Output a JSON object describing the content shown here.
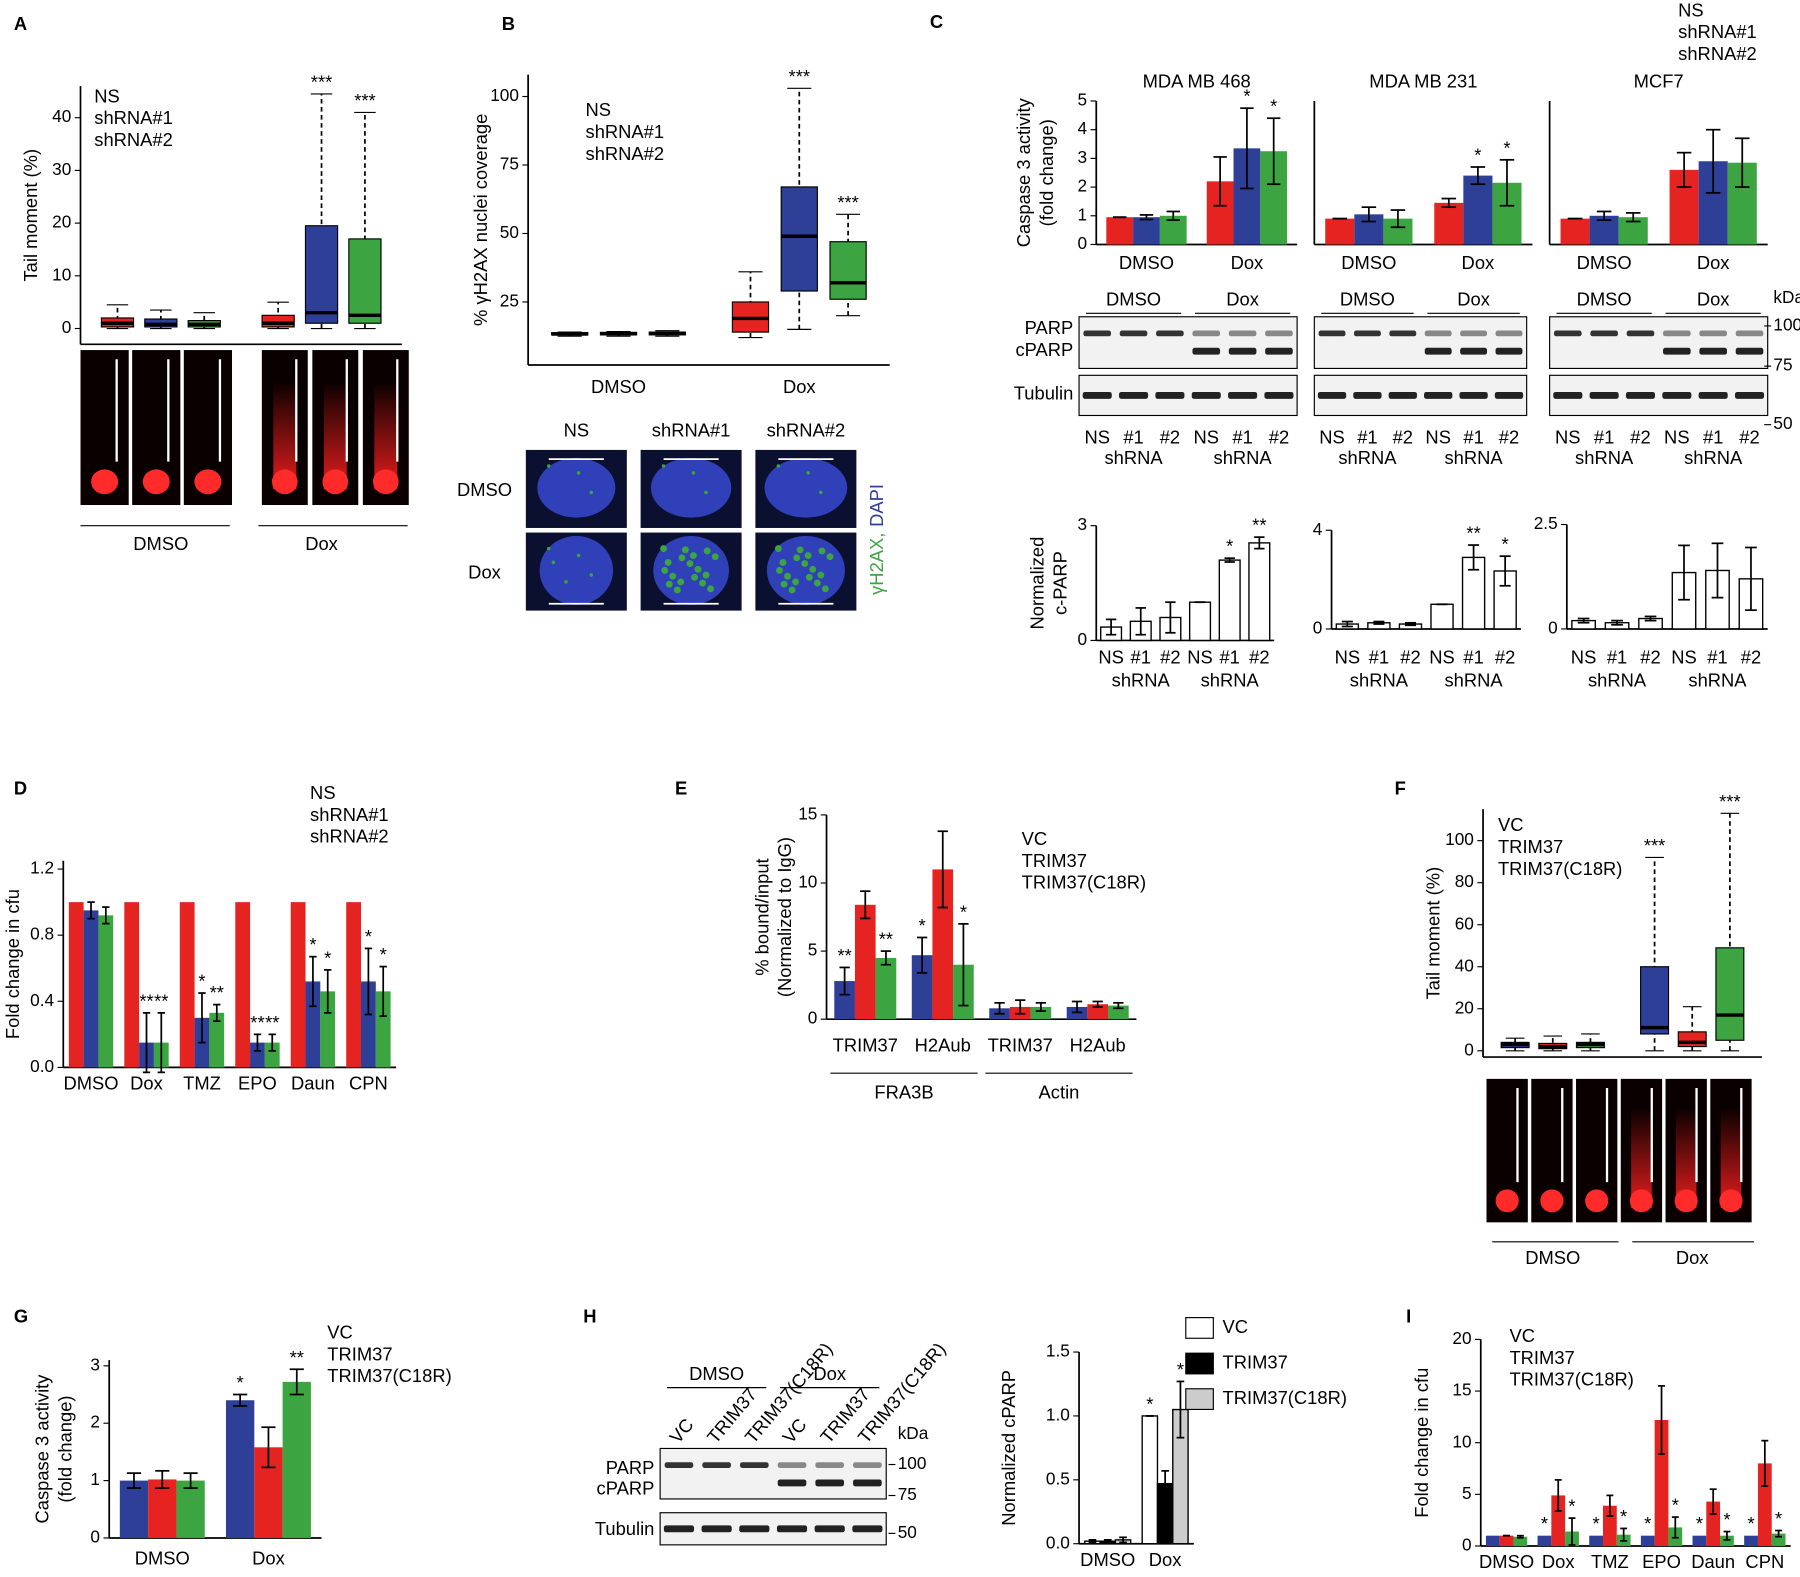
{
  "chart_data": [
    {
      "type": "box",
      "panel": "A",
      "ylabel": [
        "Tail moment (%)"
      ],
      "ylim": [
        -3,
        46
      ],
      "yticks": [
        0,
        10,
        20,
        30,
        40
      ],
      "categories": [
        "DMSO",
        "Dox"
      ],
      "series": [
        {
          "name": "NS",
          "color": "#e52421",
          "values": [
            {
              "min": 0,
              "q1": 0.3,
              "median": 1,
              "q3": 2,
              "max": 4.5
            },
            {
              "min": 0,
              "q1": 0.3,
              "median": 1,
              "q3": 2.5,
              "max": 5
            }
          ]
        },
        {
          "name": "shRNA#1",
          "color": "#2e3f98",
          "values": [
            {
              "min": 0,
              "q1": 0.3,
              "median": 0.8,
              "q3": 1.8,
              "max": 3.5
            },
            {
              "min": 0,
              "q1": 1,
              "median": 3,
              "q3": 19.5,
              "max": 44.5
            }
          ],
          "significance": [
            null,
            "***"
          ]
        },
        {
          "name": "shRNA#2",
          "color": "#3ca541",
          "values": [
            {
              "min": 0,
              "q1": 0.3,
              "median": 0.8,
              "q3": 1.5,
              "max": 3
            },
            {
              "min": 0,
              "q1": 1,
              "median": 2.5,
              "q3": 17,
              "max": 41
            }
          ],
          "significance": [
            null,
            "***"
          ]
        }
      ]
    },
    {
      "type": "box",
      "panel": "B",
      "ylabel": [
        "% γH2AX nuclei coverage"
      ],
      "ylim": [
        2,
        108
      ],
      "yticks": [
        25,
        50,
        75,
        100
      ],
      "categories": [
        "DMSO",
        "Dox"
      ],
      "series": [
        {
          "name": "NS",
          "color": "#e52421",
          "values": [
            {
              "min": 12.5,
              "q1": 13,
              "median": 13.3,
              "q3": 13.8,
              "max": 14
            },
            {
              "min": 12,
              "q1": 14,
              "median": 19,
              "q3": 25,
              "max": 36
            }
          ]
        },
        {
          "name": "shRNA#1",
          "color": "#2e3f98",
          "values": [
            {
              "min": 12.5,
              "q1": 13,
              "median": 13.4,
              "q3": 13.9,
              "max": 14.2
            },
            {
              "min": 15,
              "q1": 29,
              "median": 49,
              "q3": 67,
              "max": 103
            }
          ],
          "significance": [
            null,
            "***"
          ]
        },
        {
          "name": "shRNA#2",
          "color": "#3ca541",
          "values": [
            {
              "min": 12.5,
              "q1": 13,
              "median": 13.5,
              "q3": 14,
              "max": 14.5
            },
            {
              "min": 20,
              "q1": 26,
              "median": 32,
              "q3": 47,
              "max": 57
            }
          ],
          "significance": [
            null,
            "***"
          ]
        }
      ]
    },
    {
      "type": "bar",
      "panel": "C",
      "title": "MDA MB 468",
      "ylabel": [
        "Caspase 3 activity",
        "(fold change)"
      ],
      "ylim": [
        0,
        5
      ],
      "yticks": [
        0,
        1,
        2,
        3,
        4,
        5
      ],
      "categories": [
        "DMSO",
        "Dox"
      ],
      "series": [
        {
          "name": "NS",
          "color": "#e52421",
          "values": [
            0.95,
            2.2
          ],
          "errors": [
            0,
            0.85
          ]
        },
        {
          "name": "shRNA#1",
          "color": "#2e3f98",
          "values": [
            0.95,
            3.35
          ],
          "errors": [
            0.08,
            1.4
          ],
          "significance": [
            null,
            "*"
          ]
        },
        {
          "name": "shRNA#2",
          "color": "#3ca541",
          "values": [
            1.0,
            3.25
          ],
          "errors": [
            0.15,
            1.15
          ],
          "significance": [
            null,
            "*"
          ]
        }
      ]
    },
    {
      "type": "bar",
      "title": "MDA MB 231",
      "ylim": [
        0,
        5
      ],
      "categories": [
        "DMSO",
        "Dox"
      ],
      "series": [
        {
          "color": "#e52421",
          "values": [
            0.9,
            1.45
          ],
          "errors": [
            0,
            0.15
          ]
        },
        {
          "color": "#2e3f98",
          "values": [
            1.05,
            2.4
          ],
          "errors": [
            0.25,
            0.3
          ],
          "significance": [
            null,
            "*"
          ]
        },
        {
          "color": "#3ca541",
          "values": [
            0.9,
            2.15
          ],
          "errors": [
            0.3,
            0.8
          ],
          "significance": [
            null,
            "*"
          ]
        }
      ]
    },
    {
      "type": "bar",
      "title": "MCF7",
      "ylim": [
        0,
        5
      ],
      "categories": [
        "DMSO",
        "Dox"
      ],
      "series": [
        {
          "color": "#e52421",
          "values": [
            0.9,
            2.6
          ],
          "errors": [
            0,
            0.6
          ]
        },
        {
          "color": "#2e3f98",
          "values": [
            1.0,
            2.9
          ],
          "errors": [
            0.15,
            1.1
          ]
        },
        {
          "color": "#3ca541",
          "values": [
            0.95,
            2.85
          ],
          "errors": [
            0.15,
            0.85
          ]
        }
      ]
    },
    {
      "type": "bar",
      "ylabel": [
        "Normalized",
        "c-PARP"
      ],
      "ylim": [
        0,
        3
      ],
      "yticks": [
        0,
        3
      ],
      "categories": [
        "NS",
        "#1",
        "#2",
        "NS",
        "#1",
        "#2"
      ],
      "group_labels": [
        "shRNA",
        "shRNA"
      ],
      "color": "#ffffff",
      "outline": "#000000",
      "values": [
        0.35,
        0.5,
        0.6,
        1.0,
        2.1,
        2.55
      ],
      "errors": [
        0.2,
        0.35,
        0.4,
        0,
        0.05,
        0.15
      ],
      "significance": [
        null,
        null,
        null,
        null,
        "*",
        "**"
      ]
    },
    {
      "type": "bar",
      "ylim": [
        0,
        4
      ],
      "yticks": [
        0,
        4
      ],
      "categories": [
        "NS",
        "#1",
        "#2",
        "NS",
        "#1",
        "#2"
      ],
      "group_labels": [
        "shRNA",
        "shRNA"
      ],
      "color": "#ffffff",
      "outline": "#000000",
      "values": [
        0.2,
        0.25,
        0.2,
        1.0,
        2.9,
        2.35
      ],
      "errors": [
        0.1,
        0.05,
        0.05,
        0,
        0.5,
        0.6
      ],
      "significance": [
        null,
        null,
        null,
        null,
        "**",
        "*"
      ]
    },
    {
      "type": "bar",
      "ylim": [
        0,
        2.5
      ],
      "yticks": [
        0,
        2.5
      ],
      "categories": [
        "NS",
        "#1",
        "#2",
        "NS",
        "#1",
        "#2"
      ],
      "group_labels": [
        "shRNA",
        "shRNA"
      ],
      "color": "#ffffff",
      "outline": "#000000",
      "values": [
        0.2,
        0.15,
        0.25,
        1.35,
        1.4,
        1.2
      ],
      "errors": [
        0.05,
        0.05,
        0.05,
        0.65,
        0.65,
        0.75
      ]
    },
    {
      "type": "bar",
      "panel": "D",
      "ylabel": [
        "Fold change in cfu"
      ],
      "ylim": [
        0,
        1.25
      ],
      "yticks": [
        {
          "value": 0,
          "label": "0.0"
        },
        0.4,
        0.8,
        1.2
      ],
      "categories": [
        "DMSO",
        "Dox",
        "TMZ",
        "EPO",
        "Daun",
        "CPN"
      ],
      "series": [
        {
          "name": "NS",
          "color": "#e52421",
          "values": [
            1,
            1,
            1,
            1,
            1,
            1
          ]
        },
        {
          "name": "shRNA#1",
          "color": "#2e3f98",
          "values": [
            0.95,
            0.15,
            0.3,
            0.15,
            0.52,
            0.52
          ],
          "errors": [
            0.05,
            0.18,
            0.15,
            0.05,
            0.15,
            0.2
          ],
          "significance": [
            null,
            "**",
            "*",
            "**",
            "*",
            "*"
          ]
        },
        {
          "name": "shRNA#2",
          "color": "#3ca541",
          "values": [
            0.92,
            0.15,
            0.33,
            0.15,
            0.46,
            0.46
          ],
          "errors": [
            0.05,
            0.18,
            0.05,
            0.05,
            0.13,
            0.15
          ],
          "significance": [
            null,
            "**",
            "**",
            "**",
            "*",
            "*"
          ]
        }
      ]
    },
    {
      "type": "bar",
      "panel": "E",
      "ylabel": [
        "% bound/input",
        "(Normalized to IgG)"
      ],
      "ylim": [
        0,
        15
      ],
      "yticks": [
        0,
        5,
        10,
        15
      ],
      "categories": [
        "TRIM37",
        "H2Aub",
        "TRIM37",
        "H2Aub"
      ],
      "group_labels": [
        "FRA3B",
        "Actin"
      ],
      "series": [
        {
          "name": "VC",
          "color": "#2e3f98",
          "values": [
            2.8,
            4.7,
            0.8,
            0.9
          ],
          "errors": [
            1,
            1.3,
            0.4,
            0.4
          ],
          "significance": [
            "**",
            "*",
            null,
            null
          ]
        },
        {
          "name": "TRIM37",
          "color": "#e52421",
          "values": [
            8.4,
            11,
            0.9,
            1.1
          ],
          "errors": [
            1,
            2.8,
            0.5,
            0.2
          ]
        },
        {
          "name": "TRIM37(C18R)",
          "color": "#3ca541",
          "values": [
            4.5,
            4,
            0.9,
            1
          ],
          "errors": [
            0.5,
            3,
            0.3,
            0.2
          ],
          "significance": [
            "**",
            "*",
            null,
            null
          ]
        }
      ]
    },
    {
      "type": "box",
      "panel": "F",
      "ylabel": [
        "Tail moment (%)"
      ],
      "ylim": [
        -3,
        115
      ],
      "yticks": [
        0,
        20,
        40,
        60,
        80,
        100
      ],
      "categories": [
        "DMSO",
        "Dox"
      ],
      "series": [
        {
          "name": "VC",
          "color": "#2e3f98",
          "values": [
            {
              "min": 0,
              "q1": 1.5,
              "median": 3,
              "q3": 4,
              "max": 6
            },
            {
              "min": 0,
              "q1": 8,
              "median": 11,
              "q3": 40,
              "max": 92
            }
          ],
          "significance": [
            null,
            "***"
          ]
        },
        {
          "name": "TRIM37",
          "color": "#e52421",
          "values": [
            {
              "min": 0,
              "q1": 1,
              "median": 2,
              "q3": 3.5,
              "max": 7
            },
            {
              "min": 0,
              "q1": 2,
              "median": 4,
              "q3": 9,
              "max": 21
            }
          ]
        },
        {
          "name": "TRIM37(C18R)",
          "color": "#3ca541",
          "values": [
            {
              "min": 0,
              "q1": 1.5,
              "median": 3,
              "q3": 4,
              "max": 8
            },
            {
              "min": 0,
              "q1": 5,
              "median": 17,
              "q3": 49,
              "max": 113
            }
          ],
          "significance": [
            null,
            "***"
          ]
        }
      ]
    },
    {
      "type": "bar",
      "panel": "G",
      "ylabel": [
        "Caspase 3 activity",
        "(fold change)"
      ],
      "ylim": [
        0,
        3.1
      ],
      "yticks": [
        0,
        1,
        2,
        3
      ],
      "categories": [
        "DMSO",
        "Dox"
      ],
      "series": [
        {
          "name": "VC",
          "color": "#2e3f98",
          "values": [
            1,
            2.4
          ],
          "errors": [
            0.13,
            0.1
          ],
          "significance": [
            null,
            "*"
          ]
        },
        {
          "name": "TRIM37",
          "color": "#e52421",
          "values": [
            1.02,
            1.58
          ],
          "errors": [
            0.15,
            0.35
          ]
        },
        {
          "name": "TRIM37(C18R)",
          "color": "#3ca541",
          "values": [
            1,
            2.72
          ],
          "errors": [
            0.13,
            0.22
          ],
          "significance": [
            null,
            "**"
          ]
        }
      ]
    },
    {
      "type": "bar",
      "panel": "H",
      "ylabel": [
        "Normalized cPARP"
      ],
      "ylim": [
        0,
        1.5
      ],
      "yticks": [
        {
          "value": 0,
          "label": "0.0"
        },
        0.5,
        {
          "value": 1,
          "label": "1.0"
        },
        {
          "value": 1.5,
          "label": "1.5"
        }
      ],
      "categories": [
        "DMSO",
        "Dox"
      ],
      "outline": "#000000",
      "series": [
        {
          "name": "VC",
          "color": "#ffffff",
          "values": [
            0.02,
            1.0
          ],
          "errors": [
            0.01,
            0
          ],
          "significance": [
            null,
            "*"
          ]
        },
        {
          "name": "TRIM37",
          "color": "#000000",
          "values": [
            0.02,
            0.47
          ],
          "errors": [
            0.01,
            0.1
          ]
        },
        {
          "name": "TRIM37(C18R)",
          "color": "#cccccc",
          "values": [
            0.03,
            1.05
          ],
          "errors": [
            0.02,
            0.22
          ],
          "significance": [
            null,
            "*"
          ]
        }
      ]
    },
    {
      "type": "bar",
      "panel": "I",
      "ylabel": [
        "Fold change in cfu"
      ],
      "ylim": [
        0,
        20
      ],
      "yticks": [
        0,
        5,
        10,
        15,
        20
      ],
      "categories": [
        "DMSO",
        "Dox",
        "TMZ",
        "EPO",
        "Daun",
        "CPN"
      ],
      "series": [
        {
          "name": "VC",
          "color": "#2e3f98",
          "values": [
            1,
            1,
            1,
            1,
            1,
            1
          ],
          "significance": [
            null,
            "*",
            "*",
            "*",
            "*",
            "*"
          ]
        },
        {
          "name": "TRIM37",
          "color": "#e52421",
          "values": [
            1,
            4.9,
            3.9,
            12.2,
            4.3,
            8
          ],
          "errors": [
            0,
            1.5,
            1,
            3.3,
            1.2,
            2.2
          ]
        },
        {
          "name": "TRIM37(C18R)",
          "color": "#3ca541",
          "values": [
            0.9,
            1.4,
            1.1,
            1.8,
            1,
            1.2
          ],
          "errors": [
            0.1,
            1.3,
            0.6,
            1,
            0.4,
            0.3
          ],
          "significance": [
            null,
            "*",
            "*",
            "*",
            "*",
            "*"
          ]
        }
      ]
    }
  ],
  "blots": [
    {
      "conditions": [
        "DMSO",
        "Dox"
      ],
      "rows": [
        "PARP",
        "cPARP",
        "Tubulin"
      ],
      "lanes": [
        "NS",
        "#1",
        "#2",
        "NS",
        "#1",
        "#2"
      ],
      "lane_group_labels": [
        "shRNA",
        "shRNA"
      ]
    },
    {
      "conditions": [
        "DMSO",
        "Dox"
      ],
      "lanes": [
        "NS",
        "#1",
        "#2",
        "NS",
        "#1",
        "#2"
      ],
      "lane_group_labels": [
        "shRNA",
        "shRNA"
      ]
    },
    {
      "conditions": [
        "DMSO",
        "Dox"
      ],
      "lanes": [
        "NS",
        "#1",
        "#2",
        "NS",
        "#1",
        "#2"
      ],
      "lane_group_labels": [
        "shRNA",
        "shRNA"
      ],
      "markers": {
        "unit": "kDa",
        "sizes": [
          100,
          75,
          50
        ]
      }
    },
    {
      "conditions": [
        "DMSO",
        "Dox"
      ],
      "rows": [
        "PARP",
        "cPARP",
        "Tubulin"
      ],
      "lanes": [
        "VC",
        "TRIM37",
        "TRIM37(C18R)",
        "VC",
        "TRIM37",
        "TRIM37(C18R)"
      ],
      "markers": {
        "unit": "kDa",
        "sizes": [
          100,
          75,
          50
        ]
      }
    }
  ],
  "micrographs": {
    "columns": [
      "NS",
      "shRNA#1",
      "shRNA#2"
    ],
    "rows": [
      "DMSO",
      "Dox"
    ],
    "stains": [
      "γH2AX,",
      "DAPI"
    ],
    "stain_colors": [
      "#3ca541",
      "#2e3f98"
    ]
  }
}
